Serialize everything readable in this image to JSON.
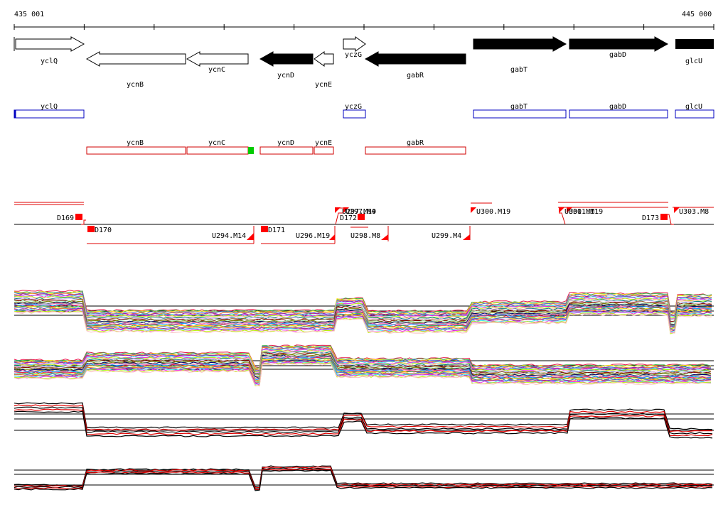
{
  "coords": {
    "start": "435 001",
    "end": "445 000"
  },
  "colors": {
    "gene_forward_outline": "#000000",
    "gene_reverse_fill": "#000000",
    "annotation_blue": "#0000c0",
    "annotation_red": "#d00000",
    "marker_red": "#ff0000",
    "marker_green": "#00cc00",
    "trace_black": "#000000",
    "trace_red": "#e00000"
  },
  "genes": [
    {
      "name": "yclQ",
      "strand": "+",
      "style": "open"
    },
    {
      "name": "ycnB",
      "strand": "-",
      "style": "open"
    },
    {
      "name": "ycnC",
      "strand": "-",
      "style": "open"
    },
    {
      "name": "ycnD",
      "strand": "-",
      "style": "filled"
    },
    {
      "name": "ycnE",
      "strand": "-",
      "style": "open"
    },
    {
      "name": "yczG",
      "strand": "+",
      "style": "open"
    },
    {
      "name": "gabR",
      "strand": "-",
      "style": "filled"
    },
    {
      "name": "gabT",
      "strand": "+",
      "style": "filled"
    },
    {
      "name": "gabD",
      "strand": "+",
      "style": "filled"
    },
    {
      "name": "glcU",
      "strand": "+",
      "style": "filled"
    }
  ],
  "forward_boxes": [
    "yclQ",
    "yczG",
    "gabT",
    "gabD",
    "glcU"
  ],
  "reverse_boxes": [
    "ycnB",
    "ycnC",
    "ycnD",
    "ycnE",
    "gabR"
  ],
  "segments_upper": [
    "D169",
    "D172",
    "U300.M19",
    "D173",
    "U303.M8"
  ],
  "segments_upper_overlap": [
    "U297.M19",
    "U297.M4",
    "U301.M11",
    "U301.M19"
  ],
  "segments_lower": [
    "D170",
    "U294.M14",
    "D171",
    "U296.M19",
    "U298.M8",
    "U299.M4"
  ]
}
